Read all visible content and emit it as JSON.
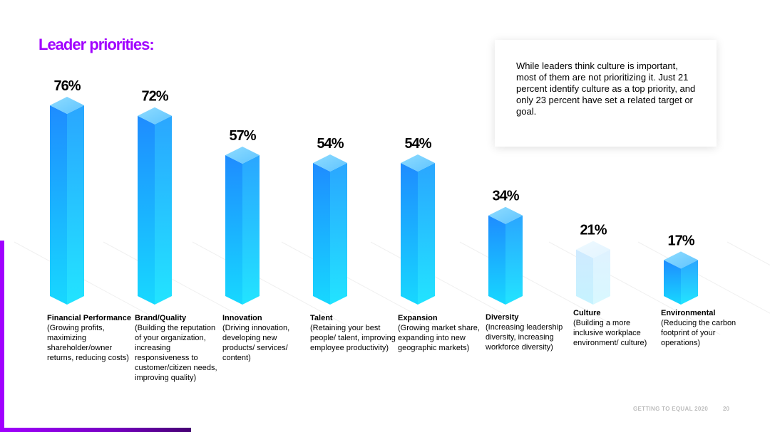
{
  "title": "Leader priorities:",
  "callout": "While leaders think culture is important, most of them are not prioritizing it. Just 21 percent identify culture as a top priority, and only 23 percent have set a related target or goal.",
  "footer": {
    "text": "GETTING TO EQUAL 2020",
    "page": "20"
  },
  "colors": {
    "accent": "#a100ff",
    "bar": "#1a9dff",
    "bar_highlight": "#bfe6ff"
  },
  "chart_data": {
    "type": "bar",
    "categories": [
      "Financial Performance",
      "Brand/Quality",
      "Innovation",
      "Talent",
      "Expansion",
      "Diversity",
      "Culture",
      "Environmental"
    ],
    "descriptions": [
      "(Growing profits, maximizing shareholder/owner returns, reducing costs)",
      "(Building the reputation of your organization, increasing responsiveness to customer/citizen needs, improving quality)",
      "(Driving innovation, developing new products/ services/ content)",
      "(Retaining your best people/ talent, improving employee productivity)",
      "(Growing market share, expanding into new geographic markets)",
      "(Increasing leadership diversity, increasing workforce diversity)",
      "(Building a more inclusive workplace environment/ culture)",
      "(Reducing the carbon footprint of your operations)"
    ],
    "values": [
      76,
      72,
      57,
      54,
      54,
      34,
      21,
      17
    ],
    "value_labels": [
      "76%",
      "72%",
      "57%",
      "54%",
      "54%",
      "34%",
      "21%",
      "17%"
    ],
    "highlighted": "Culture",
    "ylim": [
      0,
      100
    ]
  }
}
